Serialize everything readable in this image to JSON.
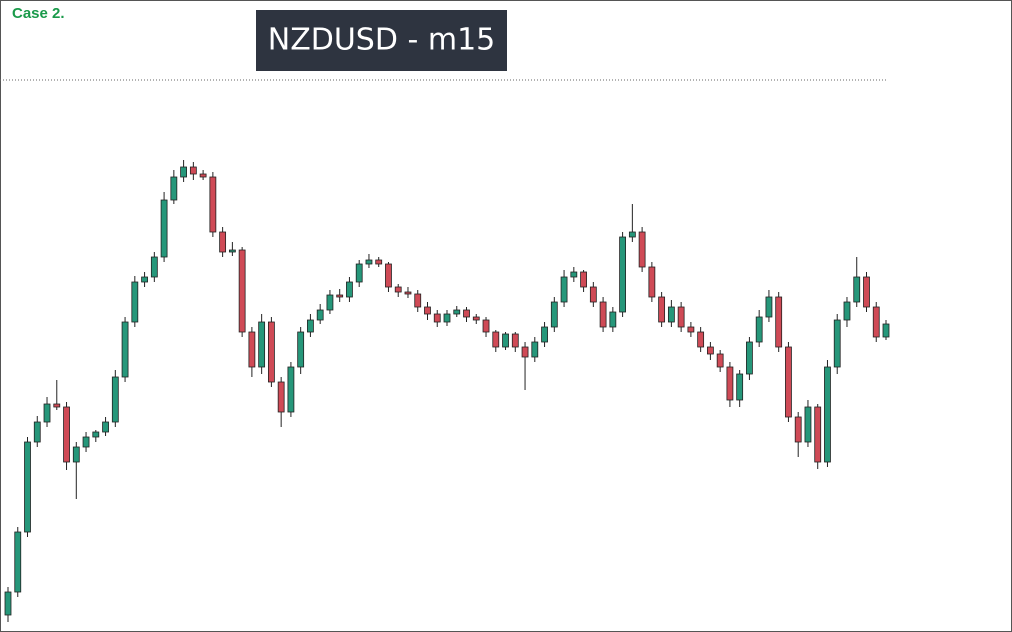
{
  "chart_data": {
    "type": "candlestick",
    "title": "NZDUSD - m15",
    "annotation": "Case 2.",
    "up_color": "#26977a",
    "down_color": "#cf4a56",
    "wick_color": "#222222",
    "ylim": [
      0,
      632
    ],
    "open": [
      17,
      40,
      100,
      190,
      210,
      228,
      225,
      170,
      185,
      195,
      200,
      210,
      255,
      310,
      350,
      355,
      375,
      432,
      455,
      465,
      458,
      455,
      400,
      380,
      382,
      300,
      265,
      310,
      250,
      220,
      265,
      300,
      312,
      322,
      337,
      335,
      350,
      368,
      372,
      368,
      345,
      340,
      338,
      325,
      318,
      310,
      318,
      322,
      315,
      312,
      300,
      285,
      298,
      285,
      275,
      290,
      305,
      330,
      355,
      360,
      345,
      330,
      305,
      320,
      395,
      400,
      365,
      335,
      310,
      325,
      305,
      300,
      285,
      278,
      265,
      232,
      258,
      290,
      315,
      335,
      285,
      215,
      190,
      225,
      170,
      265,
      312,
      330,
      355,
      325,
      295
    ],
    "high": [
      45,
      105,
      195,
      216,
      235,
      252,
      230,
      190,
      200,
      202,
      215,
      262,
      315,
      356,
      360,
      380,
      440,
      462,
      472,
      470,
      462,
      460,
      405,
      390,
      385,
      305,
      318,
      315,
      255,
      270,
      305,
      318,
      328,
      342,
      343,
      355,
      372,
      378,
      375,
      370,
      348,
      345,
      342,
      330,
      322,
      322,
      326,
      325,
      318,
      315,
      302,
      300,
      300,
      290,
      295,
      310,
      335,
      362,
      365,
      362,
      350,
      335,
      325,
      400,
      428,
      405,
      370,
      340,
      332,
      330,
      310,
      305,
      290,
      282,
      270,
      262,
      295,
      322,
      342,
      340,
      290,
      220,
      232,
      228,
      272,
      318,
      335,
      375,
      360,
      330,
      312
    ],
    "low": [
      10,
      35,
      95,
      185,
      205,
      222,
      162,
      133,
      180,
      190,
      196,
      205,
      250,
      305,
      345,
      350,
      370,
      428,
      450,
      452,
      452,
      395,
      375,
      376,
      295,
      255,
      258,
      245,
      205,
      215,
      258,
      295,
      308,
      318,
      330,
      330,
      345,
      364,
      365,
      340,
      335,
      334,
      320,
      312,
      305,
      306,
      315,
      310,
      308,
      295,
      280,
      282,
      280,
      242,
      270,
      285,
      300,
      325,
      350,
      340,
      325,
      300,
      300,
      315,
      390,
      360,
      330,
      305,
      305,
      300,
      295,
      280,
      272,
      260,
      225,
      225,
      252,
      285,
      310,
      280,
      210,
      175,
      185,
      163,
      165,
      258,
      305,
      325,
      320,
      290,
      292
    ],
    "close": [
      40,
      100,
      190,
      210,
      228,
      225,
      170,
      185,
      195,
      200,
      210,
      255,
      310,
      350,
      355,
      375,
      432,
      455,
      465,
      458,
      455,
      400,
      380,
      382,
      300,
      265,
      310,
      250,
      220,
      265,
      300,
      312,
      322,
      337,
      335,
      350,
      368,
      372,
      368,
      345,
      340,
      338,
      325,
      318,
      310,
      318,
      322,
      315,
      312,
      300,
      285,
      298,
      285,
      275,
      290,
      305,
      330,
      355,
      360,
      345,
      330,
      305,
      320,
      395,
      400,
      365,
      335,
      310,
      325,
      305,
      300,
      285,
      278,
      265,
      232,
      258,
      290,
      315,
      335,
      285,
      215,
      190,
      225,
      170,
      265,
      312,
      330,
      355,
      325,
      295,
      308
    ]
  }
}
